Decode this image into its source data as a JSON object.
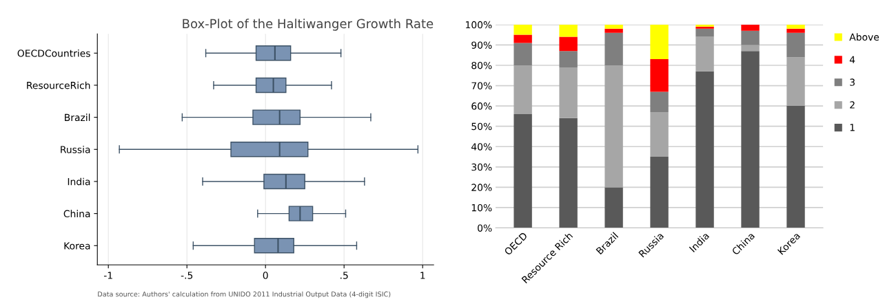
{
  "chart_data": [
    {
      "type": "box",
      "orientation": "horizontal",
      "title": "Box-Plot of the Haltiwanger Growth Rate",
      "categories": [
        "OECDCountries",
        "ResourceRich",
        "Brazil",
        "Russia",
        "India",
        "China",
        "Korea"
      ],
      "boxes": [
        {
          "low": -0.38,
          "q1": -0.06,
          "median": 0.06,
          "q3": 0.16,
          "high": 0.48
        },
        {
          "low": -0.33,
          "q1": -0.06,
          "median": 0.05,
          "q3": 0.13,
          "high": 0.42
        },
        {
          "low": -0.53,
          "q1": -0.08,
          "median": 0.09,
          "q3": 0.22,
          "high": 0.67
        },
        {
          "low": -0.93,
          "q1": -0.22,
          "median": 0.09,
          "q3": 0.27,
          "high": 0.97
        },
        {
          "low": -0.4,
          "q1": -0.01,
          "median": 0.13,
          "q3": 0.25,
          "high": 0.63
        },
        {
          "low": -0.05,
          "q1": 0.15,
          "median": 0.22,
          "q3": 0.3,
          "high": 0.51
        },
        {
          "low": -0.46,
          "q1": -0.07,
          "median": 0.08,
          "q3": 0.18,
          "high": 0.58
        }
      ],
      "color": "#7a93b3",
      "xlim": [
        -1.07,
        1.07
      ],
      "xticks": [
        {
          "value": -1,
          "label": "-1"
        },
        {
          "value": -0.5,
          "label": "-.5"
        },
        0,
        {
          "value": 0.5,
          "label": ".5"
        },
        1
      ],
      "grid": "x",
      "annotations": [
        "Data source: Authors' calculation from UNIDO 2011 Industrial Output Data (4-digit ISIC)"
      ]
    },
    {
      "type": "bar",
      "stacked": true,
      "categories": [
        "OECD",
        "Resource Rich",
        "Brazil",
        "Russia",
        "India",
        "China",
        "Korea"
      ],
      "series": [
        {
          "name": "1",
          "color": "#595959",
          "values": [
            56,
            54,
            20,
            35,
            77,
            87,
            60
          ]
        },
        {
          "name": "2",
          "color": "#a6a6a6",
          "values": [
            24,
            25,
            60,
            22,
            17,
            3,
            24
          ]
        },
        {
          "name": "3",
          "color": "#7f7f7f",
          "values": [
            11,
            8,
            16,
            10,
            4,
            7,
            12
          ]
        },
        {
          "name": "4",
          "color": "#ff0000",
          "values": [
            4,
            7,
            2,
            16,
            1,
            3,
            2
          ]
        },
        {
          "name": "Above",
          "color": "#ffff00",
          "values": [
            5,
            6,
            2,
            17,
            1,
            0,
            2
          ]
        }
      ],
      "ylim": [
        0,
        100
      ],
      "yticks": [
        {
          "value": 0,
          "label": "0%"
        },
        {
          "value": 10,
          "label": "10%"
        },
        {
          "value": 20,
          "label": "20%"
        },
        {
          "value": 30,
          "label": "30%"
        },
        {
          "value": 40,
          "label": "40%"
        },
        {
          "value": 50,
          "label": "50%"
        },
        {
          "value": 60,
          "label": "60%"
        },
        {
          "value": 70,
          "label": "70%"
        },
        {
          "value": 80,
          "label": "80%"
        },
        {
          "value": 90,
          "label": "90%"
        },
        {
          "value": 100,
          "label": "100%"
        }
      ],
      "grid": "y",
      "legend": "right"
    }
  ]
}
